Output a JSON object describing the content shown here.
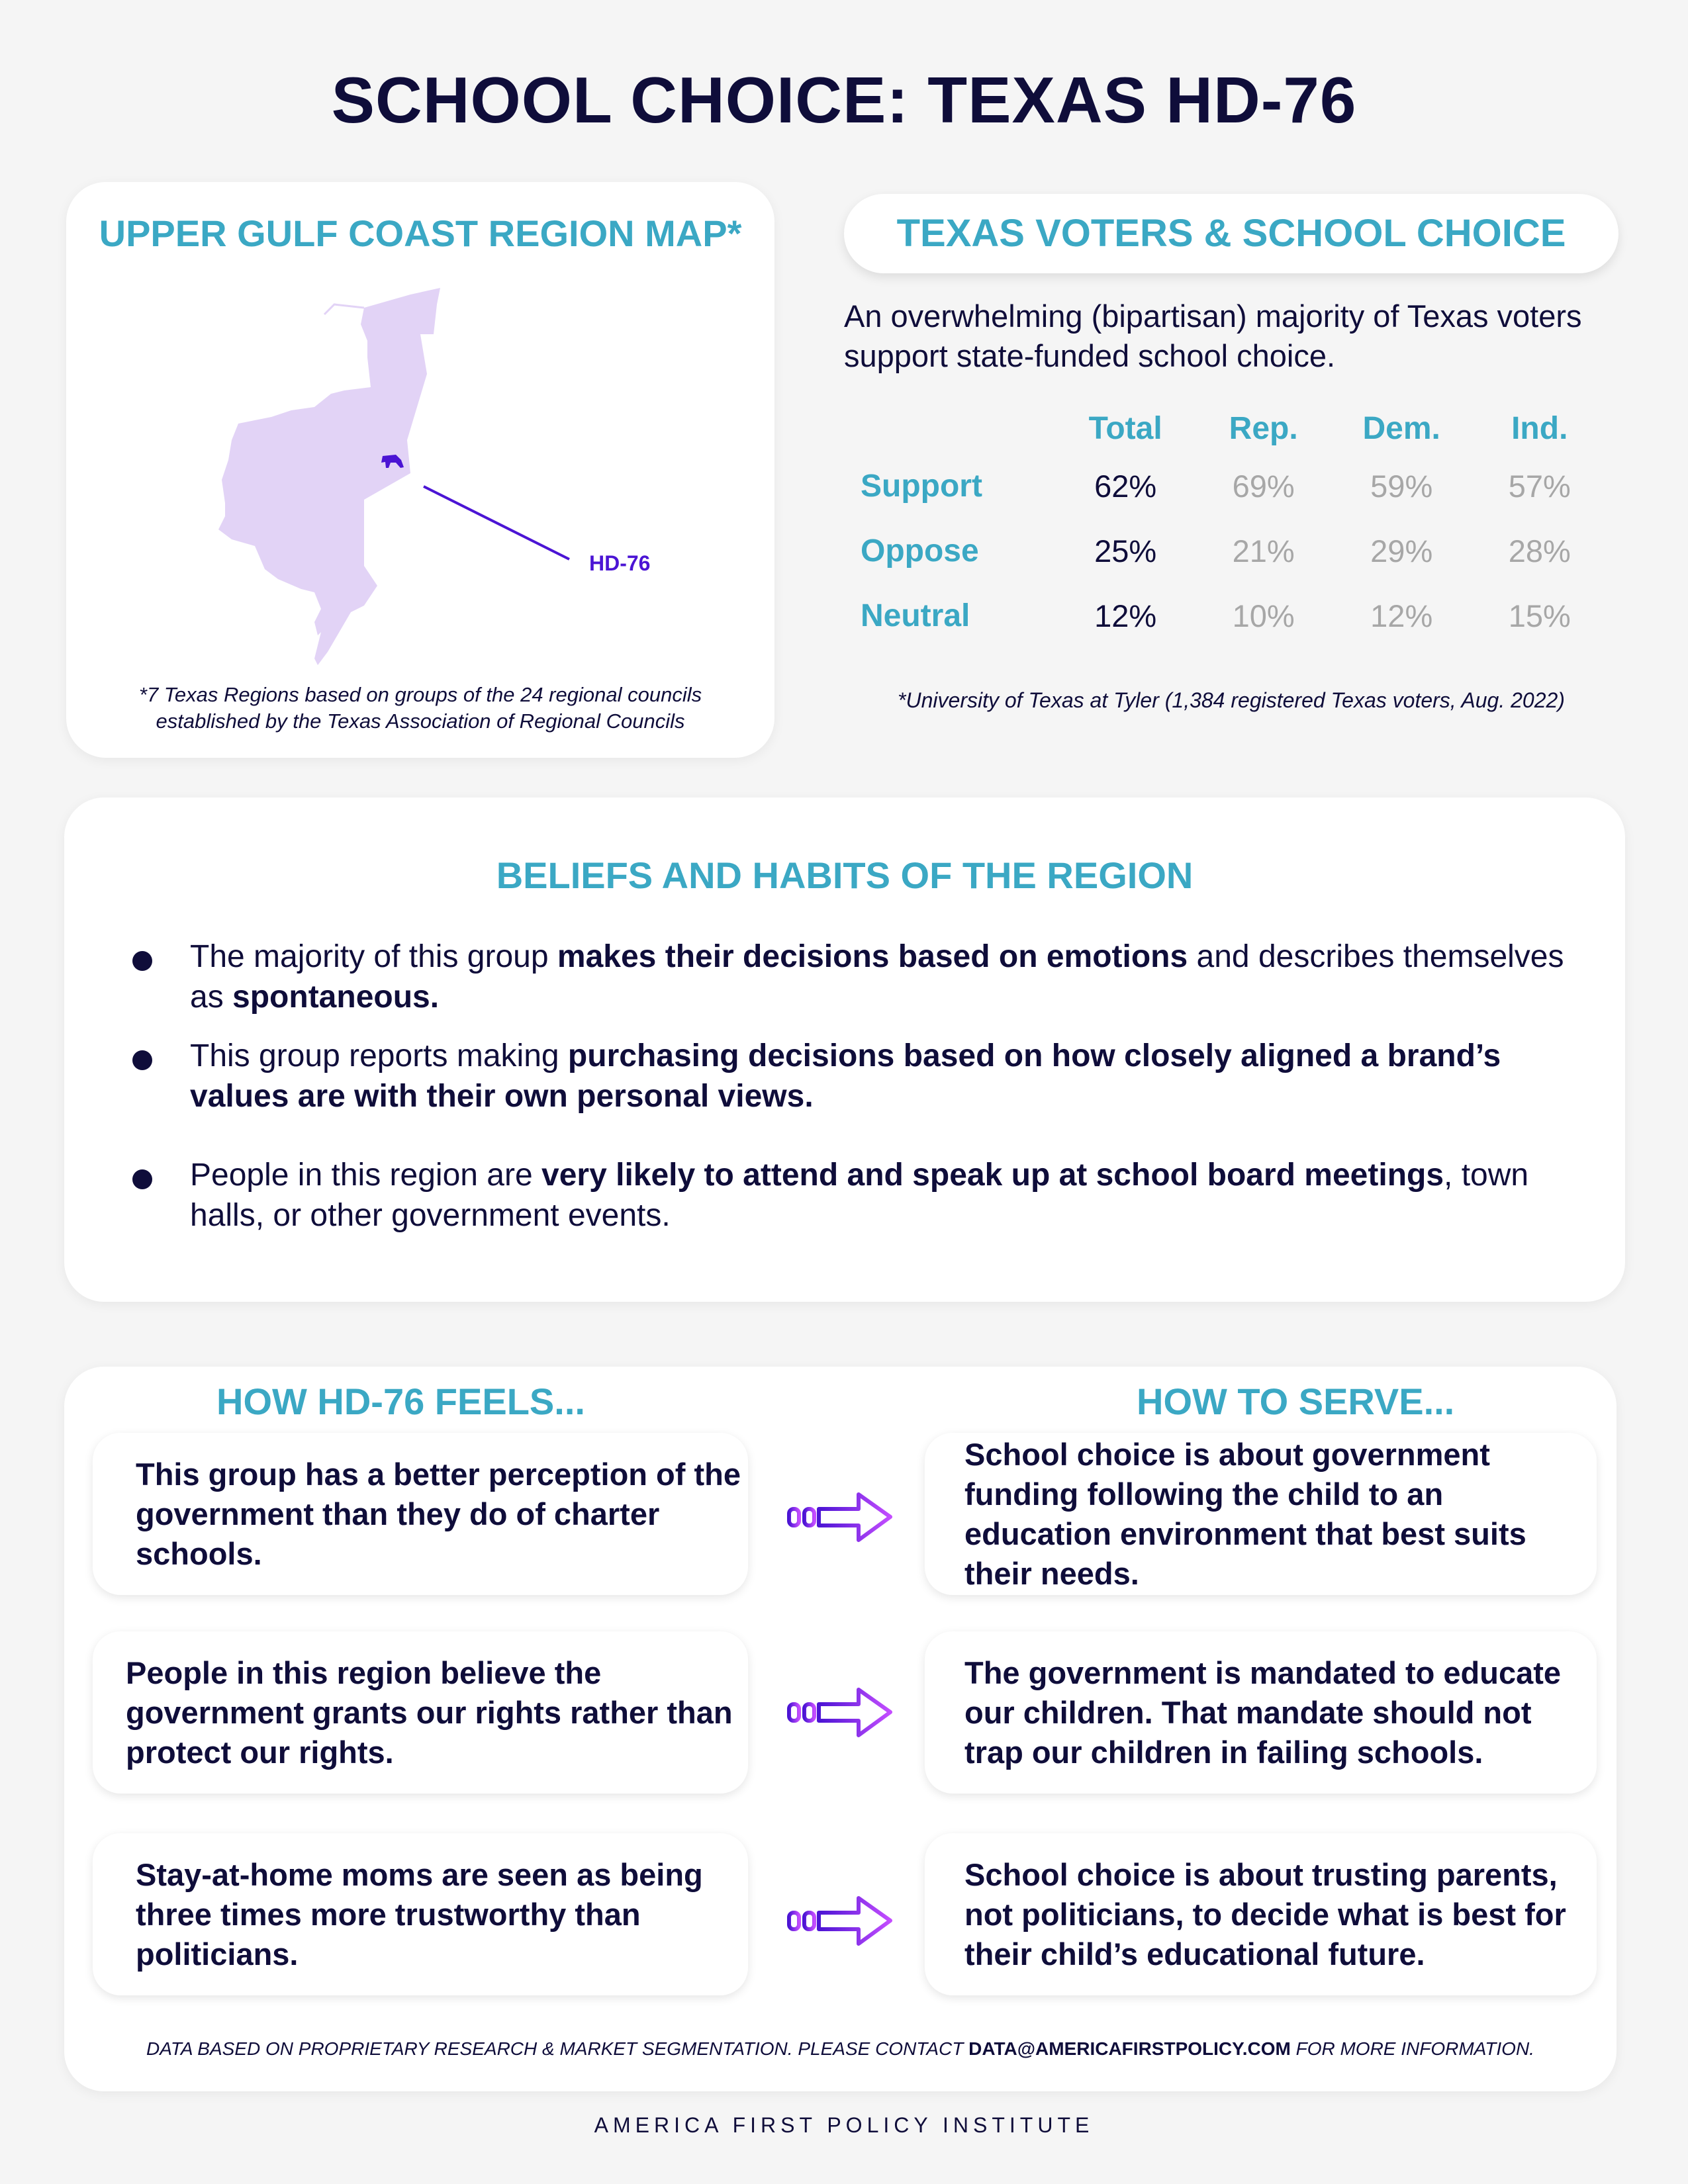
{
  "title": "SCHOOL CHOICE: TEXAS HD-76",
  "map": {
    "title": "UPPER GULF COAST REGION MAP*",
    "district_label": "HD-76",
    "note_line1": "*7 Texas Regions based on groups of the 24 regional councils",
    "note_line2": "established by the Texas Association of Regional Councils",
    "region_color": "#e2d3f6",
    "district_color": "#4b14d4"
  },
  "survey": {
    "title": "TEXAS VOTERS & SCHOOL CHOICE",
    "intro": "An overwhelming (bipartisan) majority of Texas voters support state-funded school choice.",
    "columns": [
      "Total",
      "Rep.",
      "Dem.",
      "Ind."
    ],
    "rows": [
      {
        "label": "Support",
        "values": [
          "62%",
          "69%",
          "59%",
          "57%"
        ]
      },
      {
        "label": "Oppose",
        "values": [
          "25%",
          "21%",
          "29%",
          "28%"
        ]
      },
      {
        "label": "Neutral",
        "values": [
          "12%",
          "10%",
          "12%",
          "15%"
        ]
      }
    ],
    "source": "*University of Texas at Tyler (1,384 registered Texas voters, Aug. 2022)"
  },
  "beliefs": {
    "title": "BELIEFS AND HABITS OF THE REGION",
    "b1": {
      "t1": "The majority of this group ",
      "bold1": "makes their decisions based on emotions",
      "t2": " and describes themselves as ",
      "bold2": "spontaneous."
    },
    "b2": {
      "t1": "This group reports making ",
      "bold1": "purchasing decisions based on how closely aligned a brand’s values are with their own personal views."
    },
    "b3": {
      "t1": "People in this region are ",
      "bold1": "very likely to attend and speak up at school board meetings",
      "t2": ", town halls, or other government events."
    }
  },
  "feels": {
    "left_title": "HOW HD-76 FEELS...",
    "right_title": "HOW TO SERVE...",
    "pairs": [
      {
        "feel": "This group has a better perception of the government than they do of charter schools.",
        "serve": "School choice is about government funding following the child to an education environment that best suits their needs."
      },
      {
        "feel": "People in this region believe the government grants our rights rather than protect our rights.",
        "serve": "The government is mandated to educate our children. That mandate should not trap our children in failing schools."
      },
      {
        "feel": "Stay-at-home moms are seen as being three times more trustworthy than politicians.",
        "serve": "School choice is about trusting parents, not politicians, to decide what is best for their child’s educational future."
      }
    ],
    "footer_pre": "DATA BASED ON PROPRIETARY RESEARCH & MARKET SEGMENTATION. PLEASE CONTACT ",
    "footer_email": "DATA@AMERICAFIRSTPOLICY.COM",
    "footer_post": " FOR MORE INFORMATION."
  },
  "org": "AMERICA FIRST POLICY INSTITUTE",
  "colors": {
    "navy": "#0f0d3a",
    "teal": "#3ba8c4",
    "grey": "#a7a7a7",
    "arrow_start": "#4b14d4",
    "arrow_end": "#c44dff"
  }
}
